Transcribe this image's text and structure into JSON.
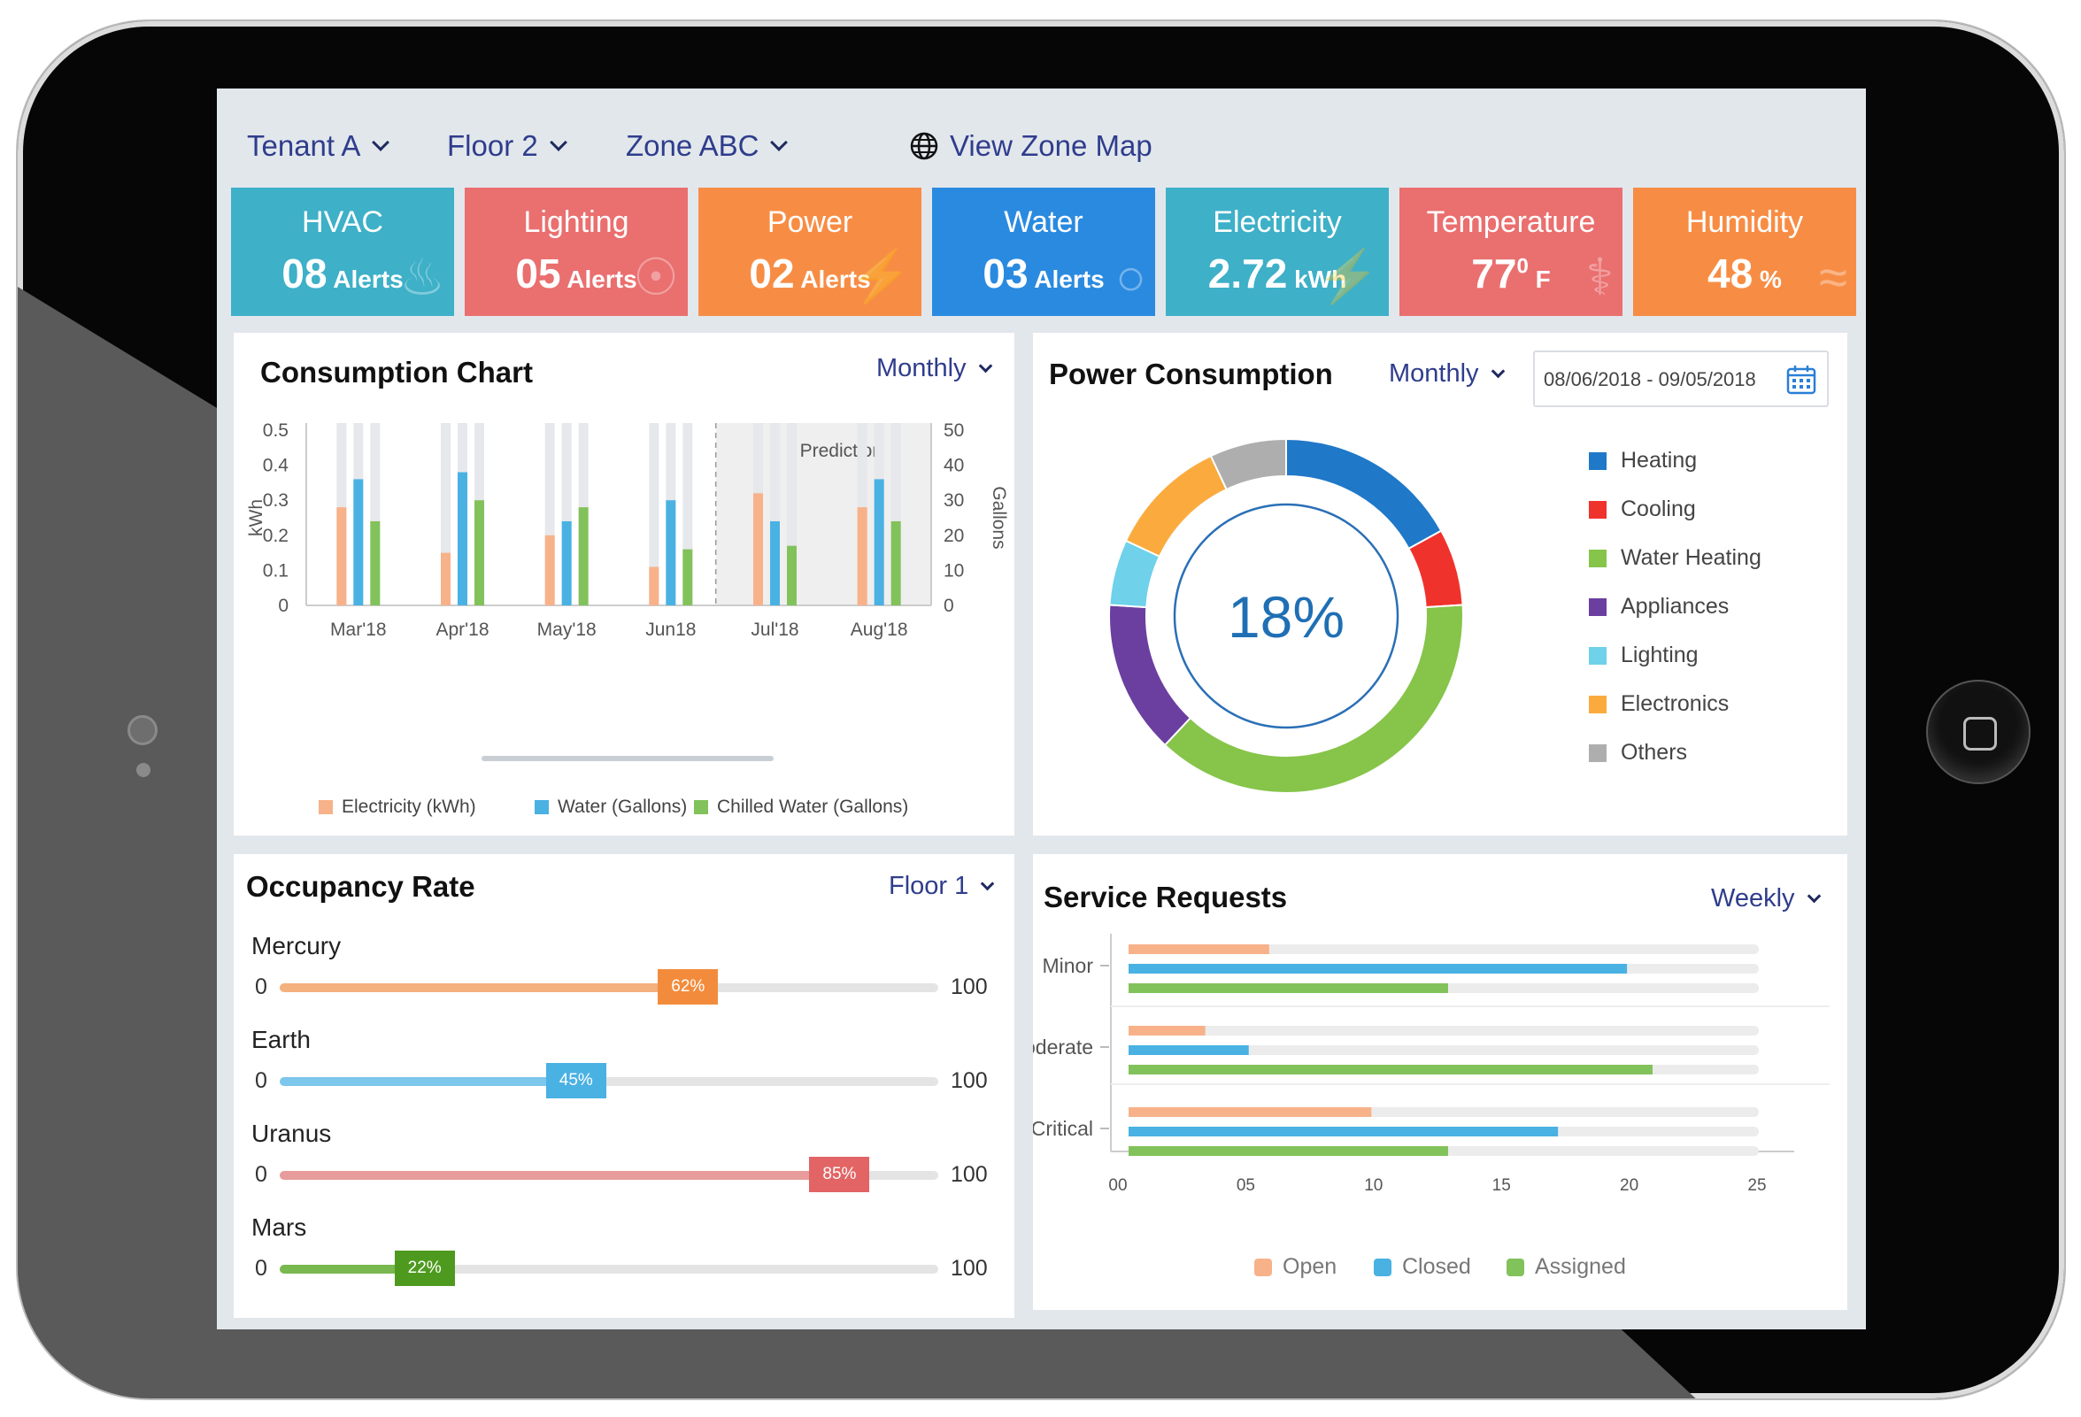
{
  "topbar": {
    "tenant": "Tenant A",
    "floor": "Floor 2",
    "zone": "Zone ABC",
    "zone_map": "View Zone Map"
  },
  "tiles": [
    {
      "title": "HVAC",
      "value": "08",
      "unit": "Alerts",
      "color": "#3eb0c8",
      "icon": "flame-icon"
    },
    {
      "title": "Lighting",
      "value": "05",
      "unit": "Alerts",
      "color": "#ea6f6f",
      "icon": "bulb-icon"
    },
    {
      "title": "Power",
      "value": "02",
      "unit": "Alerts",
      "color": "#f78d45",
      "icon": "bolt-icon"
    },
    {
      "title": "Water",
      "value": "03",
      "unit": "Alerts",
      "color": "#2a8ae0",
      "icon": "water-drop-icon"
    },
    {
      "title": "Electricity",
      "value": "2.72",
      "unit": "kWh",
      "color": "#3eb0c8",
      "icon": "bolt-icon"
    },
    {
      "title": "Temperature",
      "value": "77",
      "unit": "F",
      "sup": "0",
      "color": "#ea6f6f",
      "icon": "thermometer-icon"
    },
    {
      "title": "Humidity",
      "value": "48",
      "unit": "%",
      "color": "#f78d45",
      "icon": "waves-icon"
    }
  ],
  "consumption": {
    "title": "Consumption Chart",
    "period": "Monthly",
    "prediction_label": "Prediction",
    "legend": [
      {
        "label": "Electricity (kWh)",
        "color": "#f7b28a"
      },
      {
        "label": "Water (Gallons)",
        "color": "#4ab1e3"
      },
      {
        "label": "Chilled Water (Gallons)",
        "color": "#82c25b"
      }
    ]
  },
  "power": {
    "title": "Power Consumption",
    "period": "Monthly",
    "date_range": "08/06/2018 - 09/05/2018",
    "center_value": "18%",
    "legend": [
      {
        "label": "Heating",
        "color": "#1f78c8"
      },
      {
        "label": "Cooling",
        "color": "#f0322c"
      },
      {
        "label": "Water Heating",
        "color": "#86c44a"
      },
      {
        "label": "Appliances",
        "color": "#6b3fa0"
      },
      {
        "label": "Lighting",
        "color": "#6fd1ea"
      },
      {
        "label": "Electronics",
        "color": "#fbab3e"
      },
      {
        "label": "Others",
        "color": "#aeaeae"
      }
    ]
  },
  "occupancy": {
    "title": "Occupancy Rate",
    "floor": "Floor 1",
    "min": "0",
    "max": "100",
    "rows": [
      {
        "name": "Mercury",
        "percent": 62,
        "label": "62%",
        "color": "#f4b07d",
        "badge": "#f28c3c"
      },
      {
        "name": "Earth",
        "percent": 45,
        "label": "45%",
        "color": "#7dc6ec",
        "badge": "#4ab1e3"
      },
      {
        "name": "Uranus",
        "percent": 85,
        "label": "85%",
        "color": "#e79b9b",
        "badge": "#e26464"
      },
      {
        "name": "Mars",
        "percent": 22,
        "label": "22%",
        "color": "#78b84e",
        "badge": "#4e9a1f"
      }
    ]
  },
  "service": {
    "title": "Service Requests",
    "period": "Weekly",
    "legend": [
      {
        "label": "Open",
        "color": "#f7b28a"
      },
      {
        "label": "Closed",
        "color": "#4ab1e3"
      },
      {
        "label": "Assigned",
        "color": "#82c25b"
      }
    ]
  },
  "chart_data": [
    {
      "type": "bar",
      "title": "Consumption Chart",
      "ylabel": "kWh",
      "y2label": "Gallons",
      "ylim": [
        0,
        0.5
      ],
      "y2lim": [
        0,
        50
      ],
      "yticks": [
        "0",
        "0.1",
        "0.2",
        "0.3",
        "0.4",
        "0.5"
      ],
      "y2ticks": [
        "0",
        "10",
        "20",
        "30",
        "40",
        "50"
      ],
      "categories": [
        "Mar'18",
        "Apr'18",
        "May'18",
        "Jun18",
        "Jul'18",
        "Aug'18"
      ],
      "prediction_from": "Jul'18",
      "series": [
        {
          "name": "Electricity (kWh)",
          "axis": "left",
          "values": [
            0.28,
            0.15,
            0.2,
            0.11,
            0.32,
            0.28
          ]
        },
        {
          "name": "Water (Gallons)",
          "axis": "right",
          "values": [
            36,
            38,
            24,
            30,
            24,
            36
          ]
        },
        {
          "name": "Chilled Water (Gallons)",
          "axis": "right",
          "values": [
            24,
            30,
            28,
            16,
            17,
            24
          ]
        }
      ],
      "grid": false,
      "legend": "bottom"
    },
    {
      "type": "pie",
      "title": "Power Consumption",
      "center_label": "18%",
      "categories": [
        "Heating",
        "Cooling",
        "Water Heating",
        "Appliances",
        "Lighting",
        "Electronics",
        "Others"
      ],
      "values": [
        17,
        7,
        38,
        14,
        6,
        11,
        7
      ],
      "legend": "right"
    },
    {
      "type": "bar",
      "title": "Service Requests",
      "orientation": "horizontal",
      "categories": [
        "Minor",
        "Moderate",
        "Critical"
      ],
      "xticks": [
        "00",
        "05",
        "10",
        "15",
        "20",
        "25"
      ],
      "xlim": [
        0,
        25
      ],
      "series": [
        {
          "name": "Open",
          "values": [
            5.5,
            3,
            9.5
          ]
        },
        {
          "name": "Closed",
          "values": [
            19.5,
            4.7,
            16.8
          ]
        },
        {
          "name": "Assigned",
          "values": [
            12.5,
            20.5,
            12.5
          ]
        }
      ],
      "legend": "bottom"
    }
  ]
}
